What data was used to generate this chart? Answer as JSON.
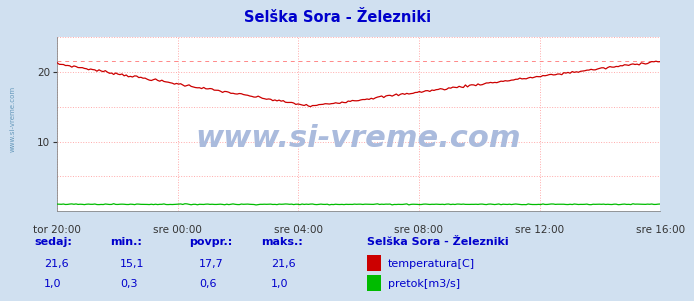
{
  "title": "Selška Sora - Železniki",
  "title_color": "#0000cc",
  "bg_color": "#d0e0f0",
  "plot_bg_color": "#ffffff",
  "grid_color": "#ffaaaa",
  "ylim": [
    0,
    25
  ],
  "yticks": [
    10,
    20
  ],
  "x_labels": [
    "tor 20:00",
    "sre 00:00",
    "sre 04:00",
    "sre 08:00",
    "sre 12:00",
    "sre 16:00"
  ],
  "n_points": 289,
  "temp_color": "#cc0000",
  "flow_color": "#00bb00",
  "watermark_text": "www.si-vreme.com",
  "watermark_color": "#aabbdd",
  "sidebar_text": "www.si-vreme.com",
  "legend_title": "Selška Sora - Železniki",
  "legend_title_color": "#0000cc",
  "stats_labels": [
    "sedaj:",
    "min.:",
    "povpr.:",
    "maks.:"
  ],
  "stats_temp": [
    "21,6",
    "15,1",
    "17,7",
    "21,6"
  ],
  "stats_flow": [
    "1,0",
    "0,3",
    "0,6",
    "1,0"
  ],
  "legend_temp": "temperatura[C]",
  "legend_flow": "pretok[m3/s]",
  "stats_color": "#0000cc",
  "temp_max_dashed": 21.6
}
